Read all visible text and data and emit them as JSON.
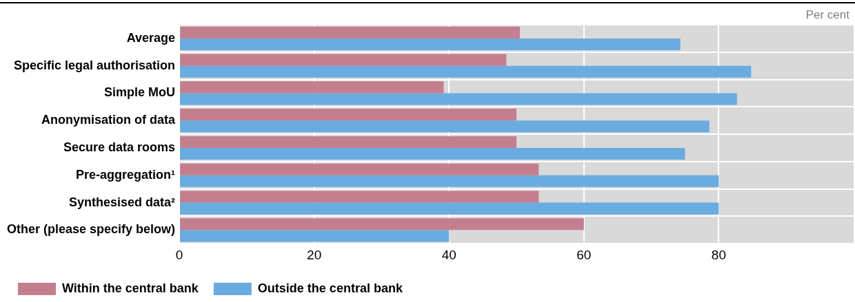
{
  "chart_data": {
    "type": "bar",
    "orientation": "horizontal",
    "categories": [
      "Average",
      "Specific legal authorisation",
      "Simple MoU",
      "Anonymisation of data",
      "Secure data rooms",
      "Pre-aggregation¹",
      "Synthesised data²",
      "Other (please specify below)"
    ],
    "series": [
      {
        "name": "Within the central bank",
        "color": "#c37f8e",
        "values": [
          50.5,
          48.5,
          39.2,
          50,
          50,
          53.3,
          53.3,
          60
        ]
      },
      {
        "name": "Outside the central bank",
        "color": "#6aabe0",
        "values": [
          74.3,
          84.8,
          82.7,
          78.6,
          75,
          80,
          80,
          40
        ]
      }
    ],
    "xlim": [
      0,
      100
    ],
    "xticks": [
      0,
      20,
      40,
      60,
      80
    ],
    "annotations": [
      "Per cent"
    ],
    "grid": true,
    "legend": "bottom"
  }
}
